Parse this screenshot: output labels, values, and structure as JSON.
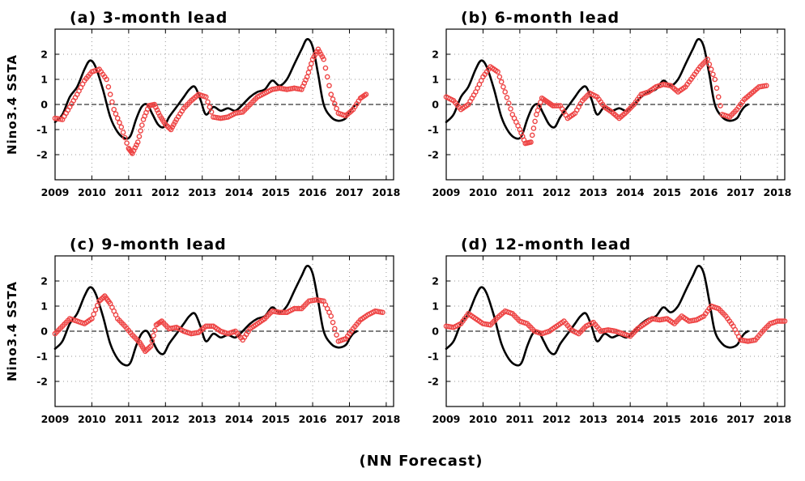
{
  "footer": "(NN Forecast)",
  "colors": {
    "observed": "#000000",
    "forecast": "#ee4444",
    "grid": "#9a9a9a"
  },
  "chart_data": [
    {
      "type": "line",
      "title": "(a) 3-month lead",
      "ylabel": "Nino3.4 SSTA",
      "xlim": [
        2009,
        2018.2
      ],
      "ylim": [
        -3,
        3
      ],
      "xticks": [
        2009,
        2010,
        2011,
        2012,
        2013,
        2014,
        2015,
        2016,
        2017,
        2018
      ],
      "yticks": [
        -2,
        -1,
        0,
        1,
        2
      ],
      "grid": true,
      "zero_line": "dashed",
      "series": [
        {
          "role": "observed",
          "style": "solid-black",
          "x": [
            2009.0,
            2009.2,
            2009.4,
            2009.6,
            2009.8,
            2009.95,
            2010.1,
            2010.3,
            2010.5,
            2010.7,
            2010.9,
            2011.05,
            2011.2,
            2011.35,
            2011.5,
            2011.65,
            2011.8,
            2011.95,
            2012.1,
            2012.3,
            2012.5,
            2012.65,
            2012.8,
            2012.95,
            2013.1,
            2013.3,
            2013.5,
            2013.7,
            2013.9,
            2014.1,
            2014.3,
            2014.5,
            2014.7,
            2014.9,
            2015.1,
            2015.3,
            2015.5,
            2015.7,
            2015.85,
            2016.0,
            2016.15,
            2016.3,
            2016.5,
            2016.7,
            2016.9,
            2017.0,
            2017.1,
            2017.2
          ],
          "y": [
            -0.7,
            -0.4,
            0.3,
            0.7,
            1.4,
            1.75,
            1.5,
            0.6,
            -0.5,
            -1.1,
            -1.35,
            -1.25,
            -0.6,
            -0.1,
            0.0,
            -0.4,
            -0.8,
            -0.9,
            -0.5,
            -0.1,
            0.3,
            0.6,
            0.7,
            0.2,
            -0.4,
            -0.1,
            -0.25,
            -0.15,
            -0.25,
            0.0,
            0.3,
            0.5,
            0.6,
            0.95,
            0.75,
            1.0,
            1.6,
            2.2,
            2.6,
            2.3,
            1.2,
            0.0,
            -0.5,
            -0.65,
            -0.55,
            -0.3,
            -0.1,
            0.0
          ]
        },
        {
          "role": "forecast",
          "style": "red-circles",
          "x": [
            2009.0,
            2009.2,
            2009.4,
            2009.6,
            2009.8,
            2010.0,
            2010.2,
            2010.4,
            2010.6,
            2010.8,
            2011.0,
            2011.1,
            2011.25,
            2011.4,
            2011.55,
            2011.7,
            2011.85,
            2012.0,
            2012.15,
            2012.3,
            2012.5,
            2012.7,
            2012.9,
            2013.1,
            2013.3,
            2013.5,
            2013.7,
            2013.9,
            2014.1,
            2014.3,
            2014.5,
            2014.7,
            2014.9,
            2015.1,
            2015.3,
            2015.5,
            2015.7,
            2015.85,
            2016.0,
            2016.15,
            2016.3,
            2016.5,
            2016.7,
            2016.9,
            2017.1,
            2017.3,
            2017.45
          ],
          "y": [
            -0.55,
            -0.6,
            -0.1,
            0.4,
            0.95,
            1.3,
            1.4,
            1.0,
            -0.2,
            -0.9,
            -1.75,
            -1.95,
            -1.5,
            -0.6,
            -0.05,
            0.0,
            -0.45,
            -0.8,
            -1.0,
            -0.6,
            -0.15,
            0.15,
            0.4,
            0.3,
            -0.5,
            -0.55,
            -0.5,
            -0.35,
            -0.3,
            0.0,
            0.3,
            0.45,
            0.6,
            0.65,
            0.6,
            0.65,
            0.6,
            1.1,
            1.8,
            2.2,
            1.8,
            0.4,
            -0.35,
            -0.45,
            -0.2,
            0.25,
            0.4
          ]
        }
      ]
    },
    {
      "type": "line",
      "title": "(b) 6-month lead",
      "ylabel": "",
      "xlim": [
        2009,
        2018.2
      ],
      "ylim": [
        -3,
        3
      ],
      "xticks": [
        2009,
        2010,
        2011,
        2012,
        2013,
        2014,
        2015,
        2016,
        2017,
        2018
      ],
      "yticks": [
        -2,
        -1,
        0,
        1,
        2
      ],
      "grid": true,
      "zero_line": "dashed",
      "series": [
        {
          "role": "observed",
          "style": "solid-black",
          "x": [
            2009.0,
            2009.2,
            2009.4,
            2009.6,
            2009.8,
            2009.95,
            2010.1,
            2010.3,
            2010.5,
            2010.7,
            2010.9,
            2011.05,
            2011.2,
            2011.35,
            2011.5,
            2011.65,
            2011.8,
            2011.95,
            2012.1,
            2012.3,
            2012.5,
            2012.65,
            2012.8,
            2012.95,
            2013.1,
            2013.3,
            2013.5,
            2013.7,
            2013.9,
            2014.1,
            2014.3,
            2014.5,
            2014.7,
            2014.9,
            2015.1,
            2015.3,
            2015.5,
            2015.7,
            2015.85,
            2016.0,
            2016.15,
            2016.3,
            2016.5,
            2016.7,
            2016.9,
            2017.0,
            2017.1,
            2017.2
          ],
          "y": [
            -0.7,
            -0.4,
            0.3,
            0.7,
            1.4,
            1.75,
            1.5,
            0.6,
            -0.5,
            -1.1,
            -1.35,
            -1.25,
            -0.6,
            -0.1,
            0.0,
            -0.4,
            -0.8,
            -0.9,
            -0.5,
            -0.1,
            0.3,
            0.6,
            0.7,
            0.2,
            -0.4,
            -0.1,
            -0.25,
            -0.15,
            -0.25,
            0.0,
            0.3,
            0.5,
            0.6,
            0.95,
            0.75,
            1.0,
            1.6,
            2.2,
            2.6,
            2.3,
            1.2,
            0.0,
            -0.5,
            -0.65,
            -0.55,
            -0.3,
            -0.1,
            0.0
          ]
        },
        {
          "role": "forecast",
          "style": "red-circles",
          "x": [
            2009.0,
            2009.2,
            2009.4,
            2009.6,
            2009.8,
            2010.0,
            2010.2,
            2010.4,
            2010.6,
            2010.8,
            2011.0,
            2011.15,
            2011.3,
            2011.45,
            2011.6,
            2011.75,
            2011.9,
            2012.1,
            2012.3,
            2012.5,
            2012.7,
            2012.9,
            2013.1,
            2013.3,
            2013.5,
            2013.7,
            2013.9,
            2014.1,
            2014.3,
            2014.5,
            2014.7,
            2014.9,
            2015.1,
            2015.3,
            2015.5,
            2015.7,
            2015.9,
            2016.1,
            2016.3,
            2016.5,
            2016.7,
            2016.9,
            2017.1,
            2017.3,
            2017.5,
            2017.7
          ],
          "y": [
            0.3,
            0.15,
            -0.2,
            0.0,
            0.5,
            1.1,
            1.5,
            1.3,
            0.5,
            -0.4,
            -1.0,
            -1.55,
            -1.5,
            -0.4,
            0.25,
            0.1,
            -0.05,
            -0.05,
            -0.55,
            -0.35,
            0.15,
            0.45,
            0.3,
            -0.1,
            -0.3,
            -0.55,
            -0.3,
            0.0,
            0.4,
            0.5,
            0.7,
            0.8,
            0.75,
            0.5,
            0.7,
            1.1,
            1.5,
            1.8,
            1.0,
            -0.4,
            -0.5,
            -0.2,
            0.2,
            0.45,
            0.7,
            0.75
          ]
        }
      ]
    },
    {
      "type": "line",
      "title": "(c) 9-month lead",
      "ylabel": "Nino3.4 SSTA",
      "xlim": [
        2009,
        2018.2
      ],
      "ylim": [
        -3,
        3
      ],
      "xticks": [
        2009,
        2010,
        2011,
        2012,
        2013,
        2014,
        2015,
        2016,
        2017,
        2018
      ],
      "yticks": [
        -2,
        -1,
        0,
        1,
        2
      ],
      "grid": true,
      "zero_line": "dashed",
      "series": [
        {
          "role": "observed",
          "style": "solid-black",
          "x": [
            2009.0,
            2009.2,
            2009.4,
            2009.6,
            2009.8,
            2009.95,
            2010.1,
            2010.3,
            2010.5,
            2010.7,
            2010.9,
            2011.05,
            2011.2,
            2011.35,
            2011.5,
            2011.65,
            2011.8,
            2011.95,
            2012.1,
            2012.3,
            2012.5,
            2012.65,
            2012.8,
            2012.95,
            2013.1,
            2013.3,
            2013.5,
            2013.7,
            2013.9,
            2014.1,
            2014.3,
            2014.5,
            2014.7,
            2014.9,
            2015.1,
            2015.3,
            2015.5,
            2015.7,
            2015.85,
            2016.0,
            2016.15,
            2016.3,
            2016.5,
            2016.7,
            2016.9,
            2017.0,
            2017.1,
            2017.2
          ],
          "y": [
            -0.7,
            -0.4,
            0.3,
            0.7,
            1.4,
            1.75,
            1.5,
            0.6,
            -0.5,
            -1.1,
            -1.35,
            -1.25,
            -0.6,
            -0.1,
            0.0,
            -0.4,
            -0.8,
            -0.9,
            -0.5,
            -0.1,
            0.3,
            0.6,
            0.7,
            0.2,
            -0.4,
            -0.1,
            -0.25,
            -0.15,
            -0.25,
            0.0,
            0.3,
            0.5,
            0.6,
            0.95,
            0.75,
            1.0,
            1.6,
            2.2,
            2.6,
            2.3,
            1.2,
            0.0,
            -0.5,
            -0.65,
            -0.55,
            -0.3,
            -0.1,
            0.0
          ]
        },
        {
          "role": "forecast",
          "style": "red-circles",
          "x": [
            2009.0,
            2009.2,
            2009.4,
            2009.6,
            2009.8,
            2010.0,
            2010.2,
            2010.35,
            2010.5,
            2010.7,
            2010.9,
            2011.1,
            2011.3,
            2011.45,
            2011.6,
            2011.75,
            2011.9,
            2012.1,
            2012.3,
            2012.5,
            2012.7,
            2012.9,
            2013.1,
            2013.3,
            2013.5,
            2013.7,
            2013.9,
            2014.1,
            2014.3,
            2014.5,
            2014.7,
            2014.9,
            2015.1,
            2015.3,
            2015.5,
            2015.7,
            2015.9,
            2016.1,
            2016.3,
            2016.5,
            2016.7,
            2016.9,
            2017.1,
            2017.3,
            2017.5,
            2017.7,
            2017.9
          ],
          "y": [
            -0.1,
            0.2,
            0.5,
            0.4,
            0.3,
            0.5,
            1.2,
            1.4,
            1.1,
            0.5,
            0.2,
            -0.15,
            -0.45,
            -0.8,
            -0.6,
            0.25,
            0.4,
            0.1,
            0.15,
            0.0,
            -0.1,
            -0.05,
            0.2,
            0.2,
            0.0,
            -0.1,
            0.0,
            -0.35,
            0.1,
            0.3,
            0.5,
            0.8,
            0.75,
            0.75,
            0.9,
            0.9,
            1.2,
            1.25,
            1.2,
            0.6,
            -0.4,
            -0.3,
            0.1,
            0.45,
            0.65,
            0.8,
            0.75
          ]
        }
      ]
    },
    {
      "type": "line",
      "title": "(d) 12-month lead",
      "ylabel": "",
      "xlim": [
        2009,
        2018.2
      ],
      "ylim": [
        -3,
        3
      ],
      "xticks": [
        2009,
        2010,
        2011,
        2012,
        2013,
        2014,
        2015,
        2016,
        2017,
        2018
      ],
      "yticks": [
        -2,
        -1,
        0,
        1,
        2
      ],
      "grid": true,
      "zero_line": "dashed",
      "series": [
        {
          "role": "observed",
          "style": "solid-black",
          "x": [
            2009.0,
            2009.2,
            2009.4,
            2009.6,
            2009.8,
            2009.95,
            2010.1,
            2010.3,
            2010.5,
            2010.7,
            2010.9,
            2011.05,
            2011.2,
            2011.35,
            2011.5,
            2011.65,
            2011.8,
            2011.95,
            2012.1,
            2012.3,
            2012.5,
            2012.65,
            2012.8,
            2012.95,
            2013.1,
            2013.3,
            2013.5,
            2013.7,
            2013.9,
            2014.1,
            2014.3,
            2014.5,
            2014.7,
            2014.9,
            2015.1,
            2015.3,
            2015.5,
            2015.7,
            2015.85,
            2016.0,
            2016.15,
            2016.3,
            2016.5,
            2016.7,
            2016.9,
            2017.0,
            2017.1,
            2017.2
          ],
          "y": [
            -0.7,
            -0.4,
            0.3,
            0.7,
            1.4,
            1.75,
            1.5,
            0.6,
            -0.5,
            -1.1,
            -1.35,
            -1.25,
            -0.6,
            -0.1,
            0.0,
            -0.4,
            -0.8,
            -0.9,
            -0.5,
            -0.1,
            0.3,
            0.6,
            0.7,
            0.2,
            -0.4,
            -0.1,
            -0.25,
            -0.15,
            -0.25,
            0.0,
            0.3,
            0.5,
            0.6,
            0.95,
            0.75,
            1.0,
            1.6,
            2.2,
            2.6,
            2.3,
            1.2,
            0.0,
            -0.5,
            -0.65,
            -0.55,
            -0.3,
            -0.1,
            0.0
          ]
        },
        {
          "role": "forecast",
          "style": "red-circles",
          "x": [
            2009.0,
            2009.2,
            2009.4,
            2009.6,
            2009.8,
            2010.0,
            2010.2,
            2010.4,
            2010.6,
            2010.8,
            2011.0,
            2011.2,
            2011.4,
            2011.6,
            2011.8,
            2012.0,
            2012.2,
            2012.4,
            2012.6,
            2012.8,
            2013.0,
            2013.2,
            2013.4,
            2013.6,
            2013.8,
            2014.0,
            2014.2,
            2014.4,
            2014.6,
            2014.8,
            2015.0,
            2015.2,
            2015.4,
            2015.6,
            2015.8,
            2016.0,
            2016.2,
            2016.4,
            2016.6,
            2016.8,
            2017.0,
            2017.2,
            2017.4,
            2017.6,
            2017.8,
            2018.0,
            2018.2
          ],
          "y": [
            0.2,
            0.15,
            0.3,
            0.7,
            0.5,
            0.3,
            0.25,
            0.55,
            0.8,
            0.7,
            0.4,
            0.3,
            0.0,
            -0.1,
            0.0,
            0.2,
            0.4,
            0.05,
            -0.1,
            0.2,
            0.35,
            0.0,
            0.05,
            0.0,
            -0.1,
            -0.2,
            0.1,
            0.3,
            0.5,
            0.45,
            0.5,
            0.3,
            0.6,
            0.4,
            0.45,
            0.6,
            1.0,
            0.9,
            0.6,
            0.2,
            -0.35,
            -0.4,
            -0.35,
            0.0,
            0.3,
            0.4,
            0.4
          ]
        }
      ]
    }
  ]
}
